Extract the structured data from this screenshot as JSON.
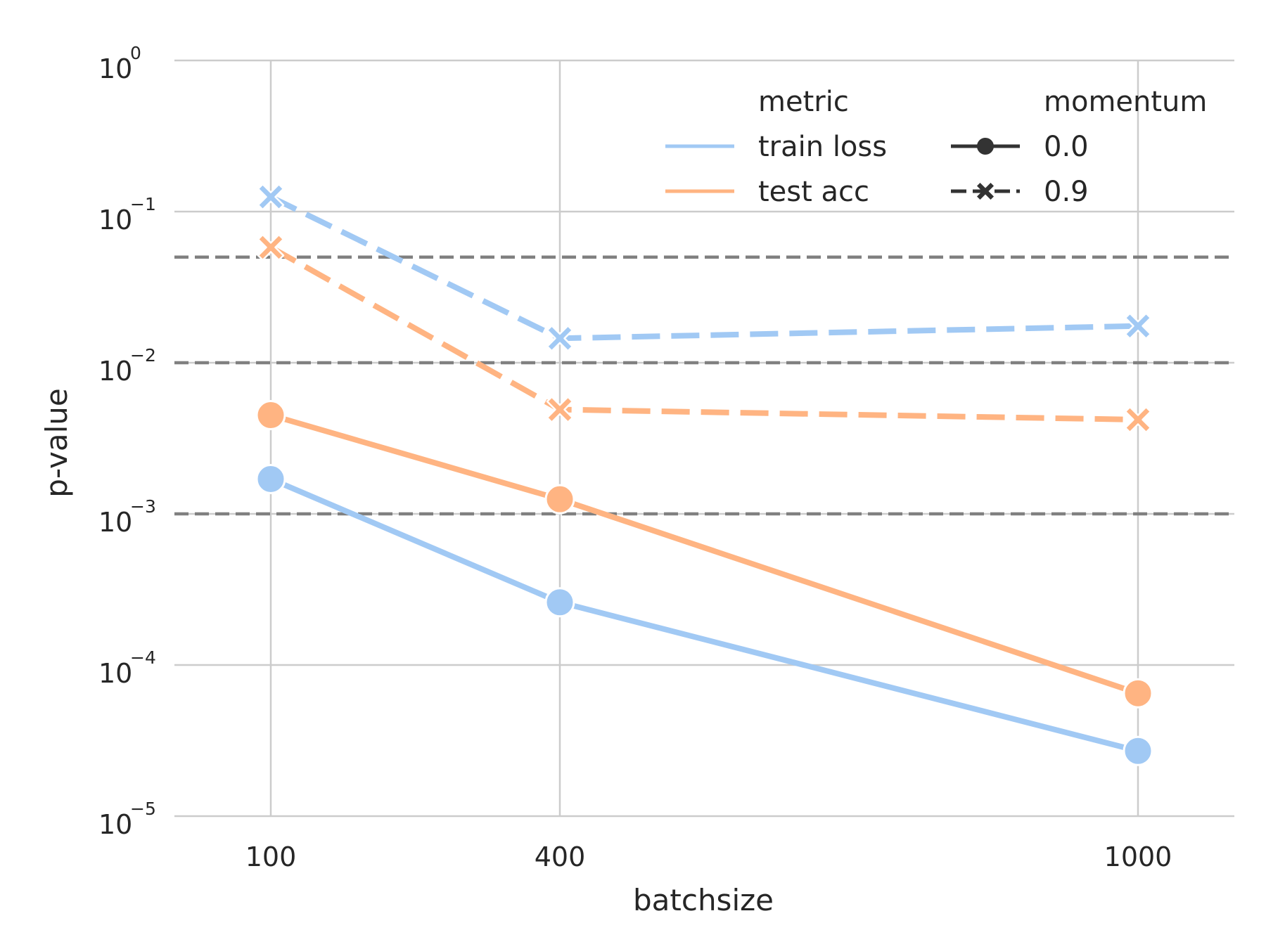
{
  "chart_data": {
    "type": "line",
    "xlabel": "batchsize",
    "ylabel": "p-value",
    "x_scale": "categorical-linear",
    "x": [
      100,
      400,
      1000
    ],
    "x_ticks": [
      "100",
      "400",
      "1000"
    ],
    "xlim": [
      0,
      1100
    ],
    "y_scale": "log",
    "ylim": [
      1e-05,
      1
    ],
    "y_ticks": [
      {
        "value": 1,
        "base": "10",
        "exp": "0"
      },
      {
        "value": 0.1,
        "base": "10",
        "exp": "−1"
      },
      {
        "value": 0.01,
        "base": "10",
        "exp": "−2"
      },
      {
        "value": 0.001,
        "base": "10",
        "exp": "−3"
      },
      {
        "value": 0.0001,
        "base": "10",
        "exp": "−4"
      },
      {
        "value": 1e-05,
        "base": "10",
        "exp": "−5"
      }
    ],
    "grid": true,
    "reference_lines": [
      0.05,
      0.01,
      0.001
    ],
    "series": [
      {
        "name": "train loss",
        "metric": "train loss",
        "momentum": "0.0",
        "color": "#a1c9f4",
        "dash": false,
        "marker": "circle",
        "values": [
          0.0017,
          0.00026,
          2.7e-05
        ]
      },
      {
        "name": "test acc",
        "metric": "test acc",
        "momentum": "0.0",
        "color": "#ffb482",
        "dash": false,
        "marker": "circle",
        "values": [
          0.0045,
          0.00125,
          6.5e-05
        ]
      },
      {
        "name": "train loss",
        "metric": "train loss",
        "momentum": "0.9",
        "color": "#a1c9f4",
        "dash": true,
        "marker": "x",
        "values": [
          0.125,
          0.0145,
          0.0175
        ]
      },
      {
        "name": "test acc",
        "metric": "test acc",
        "momentum": "0.9",
        "color": "#ffb482",
        "dash": true,
        "marker": "x",
        "values": [
          0.058,
          0.0049,
          0.0042
        ]
      }
    ],
    "legend": {
      "placement": "top-right",
      "metric_title": "metric",
      "metric_items": [
        {
          "label": "train loss",
          "color": "#a1c9f4"
        },
        {
          "label": "test acc",
          "color": "#ffb482"
        }
      ],
      "momentum_title": "momentum",
      "momentum_items": [
        {
          "label": "0.0",
          "marker": "circle",
          "dash": false
        },
        {
          "label": "0.9",
          "marker": "x",
          "dash": true
        }
      ]
    },
    "colors": {
      "grid": "#cccccc",
      "reference": "#808080",
      "legend_style": "#333333"
    }
  }
}
